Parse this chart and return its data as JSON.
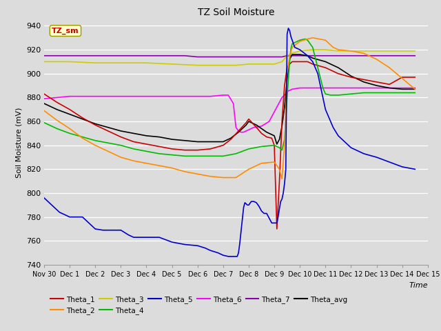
{
  "title": "TZ Soil Moisture",
  "ylabel": "Soil Moisture (mV)",
  "xlabel": "Time",
  "ylim": [
    740,
    945
  ],
  "yticks": [
    740,
    760,
    780,
    800,
    820,
    840,
    860,
    880,
    900,
    920,
    940
  ],
  "bg_color": "#dcdcdc",
  "fig_color": "#dcdcdc",
  "label_box": "TZ_sm",
  "label_box_color": "#ffffcc",
  "label_box_text_color": "#cc0000",
  "x_tick_labels": [
    "Nov 30",
    "Dec 1",
    "Dec 2",
    "Dec 3",
    "Dec 4",
    "Dec 5",
    "Dec 6",
    "Dec 7",
    "Dec 8",
    "Dec 9",
    "Dec 10",
    "Dec 11",
    "Dec 12",
    "Dec 13",
    "Dec 14",
    "Dec 15"
  ],
  "legend_row1": [
    "Theta_1",
    "Theta_2",
    "Theta_3",
    "Theta_4",
    "Theta_5",
    "Theta_6"
  ],
  "legend_row2": [
    "Theta_7",
    "Theta_avg"
  ],
  "series": {
    "Theta_1": {
      "color": "#cc0000",
      "points": [
        [
          0,
          883
        ],
        [
          0.5,
          876
        ],
        [
          1,
          870
        ],
        [
          1.5,
          863
        ],
        [
          2,
          857
        ],
        [
          2.5,
          852
        ],
        [
          3,
          847
        ],
        [
          3.5,
          843
        ],
        [
          4,
          841
        ],
        [
          4.5,
          839
        ],
        [
          5,
          837
        ],
        [
          5.5,
          836
        ],
        [
          6,
          836
        ],
        [
          6.5,
          837
        ],
        [
          7,
          840
        ],
        [
          7.3,
          845
        ],
        [
          7.6,
          852
        ],
        [
          7.9,
          859
        ],
        [
          8.0,
          862
        ],
        [
          8.3,
          855
        ],
        [
          8.5,
          850
        ],
        [
          8.7,
          847
        ],
        [
          8.9,
          846
        ],
        [
          9.0,
          840
        ],
        [
          9.1,
          770
        ],
        [
          9.2,
          810
        ],
        [
          9.3,
          860
        ],
        [
          9.4,
          890
        ],
        [
          9.5,
          905
        ],
        [
          9.6,
          908
        ],
        [
          9.7,
          910
        ],
        [
          10.0,
          910
        ],
        [
          10.3,
          910
        ],
        [
          10.5,
          908
        ],
        [
          11.0,
          905
        ],
        [
          11.5,
          900
        ],
        [
          12.0,
          897
        ],
        [
          12.5,
          895
        ],
        [
          13.0,
          893
        ],
        [
          13.5,
          891
        ],
        [
          14.0,
          897
        ],
        [
          14.5,
          897
        ]
      ]
    },
    "Theta_2": {
      "color": "#ff8c00",
      "points": [
        [
          0,
          869
        ],
        [
          0.5,
          861
        ],
        [
          1,
          854
        ],
        [
          1.5,
          846
        ],
        [
          2,
          840
        ],
        [
          2.5,
          835
        ],
        [
          3,
          830
        ],
        [
          3.5,
          827
        ],
        [
          4,
          825
        ],
        [
          4.5,
          823
        ],
        [
          5,
          821
        ],
        [
          5.5,
          818
        ],
        [
          6,
          816
        ],
        [
          6.5,
          814
        ],
        [
          7,
          813
        ],
        [
          7.5,
          813
        ],
        [
          8,
          820
        ],
        [
          8.5,
          825
        ],
        [
          9.0,
          826
        ],
        [
          9.2,
          820
        ],
        [
          9.3,
          812
        ],
        [
          9.4,
          840
        ],
        [
          9.5,
          900
        ],
        [
          9.6,
          915
        ],
        [
          9.7,
          922
        ],
        [
          10.0,
          927
        ],
        [
          10.3,
          929
        ],
        [
          10.5,
          930
        ],
        [
          11.0,
          928
        ],
        [
          11.3,
          922
        ],
        [
          11.5,
          920
        ],
        [
          12.0,
          919
        ],
        [
          12.5,
          917
        ],
        [
          13.0,
          912
        ],
        [
          13.5,
          905
        ],
        [
          14.0,
          896
        ],
        [
          14.5,
          887
        ]
      ]
    },
    "Theta_3": {
      "color": "#cccc00",
      "points": [
        [
          0,
          910
        ],
        [
          1,
          910
        ],
        [
          2,
          909
        ],
        [
          3,
          909
        ],
        [
          4,
          909
        ],
        [
          5,
          908
        ],
        [
          6,
          907
        ],
        [
          7,
          907
        ],
        [
          7.5,
          907
        ],
        [
          8,
          908
        ],
        [
          8.5,
          908
        ],
        [
          9,
          908
        ],
        [
          9.3,
          910
        ],
        [
          9.5,
          915
        ],
        [
          9.7,
          917
        ],
        [
          10.0,
          919
        ],
        [
          10.5,
          920
        ],
        [
          11.0,
          920
        ],
        [
          11.5,
          919
        ],
        [
          12.0,
          919
        ],
        [
          12.5,
          919
        ],
        [
          13.0,
          919
        ],
        [
          13.5,
          919
        ],
        [
          14.0,
          919
        ],
        [
          14.5,
          919
        ]
      ]
    },
    "Theta_4": {
      "color": "#00bb00",
      "points": [
        [
          0,
          859
        ],
        [
          0.5,
          854
        ],
        [
          1,
          850
        ],
        [
          1.5,
          847
        ],
        [
          2,
          844
        ],
        [
          2.5,
          842
        ],
        [
          3,
          840
        ],
        [
          3.5,
          837
        ],
        [
          4,
          835
        ],
        [
          4.5,
          833
        ],
        [
          5,
          832
        ],
        [
          5.5,
          831
        ],
        [
          6,
          831
        ],
        [
          6.5,
          831
        ],
        [
          7,
          831
        ],
        [
          7.5,
          833
        ],
        [
          8,
          837
        ],
        [
          8.5,
          839
        ],
        [
          9.0,
          840
        ],
        [
          9.2,
          838
        ],
        [
          9.3,
          836
        ],
        [
          9.4,
          845
        ],
        [
          9.5,
          880
        ],
        [
          9.6,
          910
        ],
        [
          9.65,
          921
        ],
        [
          9.7,
          925
        ],
        [
          10.0,
          928
        ],
        [
          10.2,
          929
        ],
        [
          10.3,
          928
        ],
        [
          10.4,
          925
        ],
        [
          10.5,
          922
        ],
        [
          10.7,
          905
        ],
        [
          10.9,
          888
        ],
        [
          11.0,
          883
        ],
        [
          11.2,
          882
        ],
        [
          11.5,
          882
        ],
        [
          12.0,
          883
        ],
        [
          12.5,
          884
        ],
        [
          13.0,
          884
        ],
        [
          13.5,
          884
        ],
        [
          14.0,
          884
        ],
        [
          14.5,
          884
        ]
      ]
    },
    "Theta_5": {
      "color": "#0000cc",
      "points": [
        [
          0,
          796
        ],
        [
          0.3,
          790
        ],
        [
          0.6,
          784
        ],
        [
          1,
          780
        ],
        [
          1.3,
          780
        ],
        [
          1.5,
          780
        ],
        [
          2,
          770
        ],
        [
          2.3,
          769
        ],
        [
          2.5,
          769
        ],
        [
          3,
          769
        ],
        [
          3.3,
          765
        ],
        [
          3.5,
          763
        ],
        [
          4,
          763
        ],
        [
          4.5,
          763
        ],
        [
          5,
          759
        ],
        [
          5.5,
          757
        ],
        [
          6,
          756
        ],
        [
          6.3,
          754
        ],
        [
          6.5,
          752
        ],
        [
          6.8,
          750
        ],
        [
          7,
          748
        ],
        [
          7.2,
          747
        ],
        [
          7.4,
          747
        ],
        [
          7.55,
          747
        ],
        [
          7.6,
          750
        ],
        [
          7.65,
          758
        ],
        [
          7.7,
          768
        ],
        [
          7.75,
          778
        ],
        [
          7.8,
          788
        ],
        [
          7.85,
          792
        ],
        [
          7.9,
          791
        ],
        [
          7.95,
          790
        ],
        [
          8.0,
          790
        ],
        [
          8.1,
          793
        ],
        [
          8.2,
          793
        ],
        [
          8.3,
          792
        ],
        [
          8.4,
          789
        ],
        [
          8.5,
          785
        ],
        [
          8.6,
          783
        ],
        [
          8.7,
          783
        ],
        [
          8.8,
          779
        ],
        [
          8.9,
          775
        ],
        [
          9.0,
          775
        ],
        [
          9.1,
          775
        ],
        [
          9.15,
          780
        ],
        [
          9.2,
          787
        ],
        [
          9.25,
          793
        ],
        [
          9.3,
          795
        ],
        [
          9.35,
          800
        ],
        [
          9.4,
          808
        ],
        [
          9.45,
          820
        ],
        [
          9.5,
          933
        ],
        [
          9.55,
          938
        ],
        [
          9.6,
          936
        ],
        [
          9.65,
          931
        ],
        [
          9.7,
          928
        ],
        [
          9.8,
          922
        ],
        [
          10.0,
          920
        ],
        [
          10.3,
          915
        ],
        [
          10.5,
          910
        ],
        [
          10.7,
          900
        ],
        [
          11.0,
          870
        ],
        [
          11.3,
          855
        ],
        [
          11.5,
          848
        ],
        [
          12.0,
          838
        ],
        [
          12.5,
          833
        ],
        [
          13.0,
          830
        ],
        [
          13.5,
          826
        ],
        [
          14.0,
          822
        ],
        [
          14.5,
          820
        ]
      ]
    },
    "Theta_6": {
      "color": "#ff00ff",
      "points": [
        [
          0,
          879
        ],
        [
          0.5,
          880
        ],
        [
          1,
          881
        ],
        [
          1.5,
          881
        ],
        [
          2,
          881
        ],
        [
          2.5,
          881
        ],
        [
          3,
          881
        ],
        [
          3.5,
          881
        ],
        [
          4,
          881
        ],
        [
          4.5,
          881
        ],
        [
          5,
          881
        ],
        [
          5.5,
          881
        ],
        [
          6,
          881
        ],
        [
          6.5,
          881
        ],
        [
          7,
          882
        ],
        [
          7.2,
          882
        ],
        [
          7.4,
          875
        ],
        [
          7.5,
          855
        ],
        [
          7.6,
          852
        ],
        [
          7.7,
          851
        ],
        [
          7.8,
          851
        ],
        [
          7.9,
          852
        ],
        [
          8.0,
          853
        ],
        [
          8.1,
          854
        ],
        [
          8.2,
          855
        ],
        [
          8.5,
          856
        ],
        [
          8.8,
          860
        ],
        [
          9.0,
          868
        ],
        [
          9.2,
          876
        ],
        [
          9.3,
          880
        ],
        [
          9.4,
          882
        ],
        [
          9.5,
          885
        ],
        [
          9.6,
          886
        ],
        [
          9.7,
          887
        ],
        [
          10.0,
          888
        ],
        [
          10.5,
          888
        ],
        [
          11.0,
          888
        ],
        [
          11.5,
          888
        ],
        [
          12.0,
          888
        ],
        [
          12.5,
          888
        ],
        [
          13.0,
          888
        ],
        [
          13.5,
          888
        ],
        [
          14.0,
          888
        ],
        [
          14.5,
          888
        ]
      ]
    },
    "Theta_7": {
      "color": "#8800aa",
      "points": [
        [
          0,
          915
        ],
        [
          0.5,
          915
        ],
        [
          1,
          915
        ],
        [
          1.5,
          915
        ],
        [
          2,
          915
        ],
        [
          2.5,
          915
        ],
        [
          3,
          915
        ],
        [
          3.5,
          915
        ],
        [
          4,
          915
        ],
        [
          4.5,
          915
        ],
        [
          5,
          915
        ],
        [
          5.5,
          915
        ],
        [
          6,
          914
        ],
        [
          6.5,
          914
        ],
        [
          7,
          914
        ],
        [
          7.5,
          914
        ],
        [
          8,
          914
        ],
        [
          8.5,
          914
        ],
        [
          9,
          914
        ],
        [
          9.3,
          914
        ],
        [
          9.5,
          915
        ],
        [
          10.0,
          915
        ],
        [
          10.5,
          915
        ],
        [
          11.0,
          915
        ],
        [
          11.5,
          915
        ],
        [
          12.0,
          915
        ],
        [
          12.5,
          915
        ],
        [
          13.0,
          915
        ],
        [
          13.5,
          915
        ],
        [
          14.0,
          915
        ],
        [
          14.5,
          915
        ]
      ]
    },
    "Theta_avg": {
      "color": "#000000",
      "points": [
        [
          0,
          875
        ],
        [
          0.5,
          870
        ],
        [
          1,
          866
        ],
        [
          1.5,
          862
        ],
        [
          2,
          858
        ],
        [
          2.5,
          855
        ],
        [
          3,
          852
        ],
        [
          3.5,
          850
        ],
        [
          4,
          848
        ],
        [
          4.5,
          847
        ],
        [
          5,
          845
        ],
        [
          5.5,
          844
        ],
        [
          6,
          843
        ],
        [
          6.5,
          843
        ],
        [
          7,
          843
        ],
        [
          7.3,
          846
        ],
        [
          7.6,
          851
        ],
        [
          7.9,
          857
        ],
        [
          8.0,
          860
        ],
        [
          8.3,
          857
        ],
        [
          8.5,
          854
        ],
        [
          8.7,
          851
        ],
        [
          8.9,
          849
        ],
        [
          9.0,
          848
        ],
        [
          9.1,
          841
        ],
        [
          9.2,
          845
        ],
        [
          9.3,
          856
        ],
        [
          9.4,
          872
        ],
        [
          9.5,
          895
        ],
        [
          9.6,
          912
        ],
        [
          9.7,
          916
        ],
        [
          10.0,
          916
        ],
        [
          10.3,
          915
        ],
        [
          10.5,
          913
        ],
        [
          11.0,
          910
        ],
        [
          11.5,
          905
        ],
        [
          12.0,
          898
        ],
        [
          12.5,
          893
        ],
        [
          13.0,
          890
        ],
        [
          13.5,
          888
        ],
        [
          14.0,
          887
        ],
        [
          14.5,
          887
        ]
      ]
    }
  }
}
